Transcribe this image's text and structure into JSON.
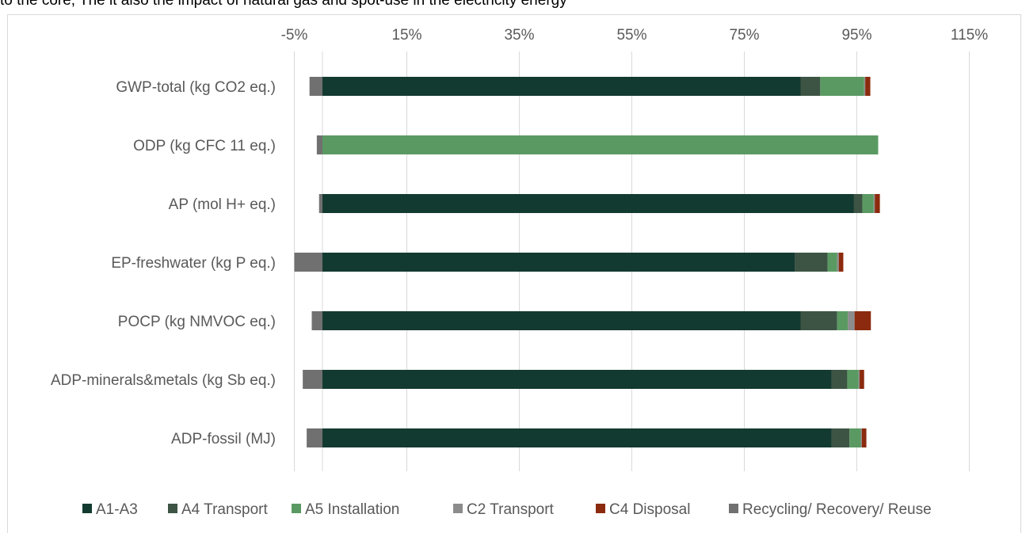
{
  "caption_fragment": "to the core, The it also the impact of natural gas and spot-use in the electricity energy",
  "chart_data": {
    "type": "bar",
    "orientation": "horizontal",
    "stacked": true,
    "xlim": [
      -10,
      125
    ],
    "x_ticks": [
      -5,
      15,
      35,
      55,
      75,
      95,
      115
    ],
    "x_tick_labels": [
      "-5%",
      "15%",
      "35%",
      "55%",
      "75%",
      "95%",
      "115%"
    ],
    "x_axis_position": "top",
    "grid": true,
    "legend_position": "bottom",
    "categories": [
      "GWP-total (kg CO2 eq.)",
      "ODP (kg CFC 11 eq.)",
      "AP (mol H+ eq.)",
      "EP-freshwater (kg P eq.)",
      "POCP (kg NMVOC eq.)",
      "ADP-minerals&metals (kg Sb eq.)",
      "ADP-fossil (MJ)"
    ],
    "series": [
      {
        "name": "A1-A3",
        "color": "#133a30",
        "values": [
          85.0,
          0.0,
          94.5,
          84.0,
          85.0,
          90.5,
          90.5
        ]
      },
      {
        "name": "A4 Transport",
        "color": "#3d5444",
        "values": [
          3.5,
          0.0,
          1.5,
          5.8,
          6.5,
          2.8,
          3.2
        ]
      },
      {
        "name": "A5  Installation",
        "color": "#5a9a62",
        "values": [
          7.8,
          98.8,
          2.0,
          1.7,
          1.9,
          2.0,
          2.0
        ]
      },
      {
        "name": "C2  Transport",
        "color": "#8c8c8c",
        "values": [
          0.2,
          0.0,
          0.2,
          0.3,
          1.2,
          0.2,
          0.2
        ]
      },
      {
        "name": "C4  Disposal",
        "color": "#8b2a0e",
        "values": [
          0.9,
          0.0,
          0.9,
          0.8,
          2.9,
          0.8,
          0.8
        ]
      },
      {
        "name": "Recycling/ Recovery/ Reuse",
        "color": "#707070",
        "values": [
          -2.3,
          -1.0,
          -0.6,
          -5.0,
          -1.9,
          -3.5,
          -2.8
        ]
      }
    ]
  }
}
